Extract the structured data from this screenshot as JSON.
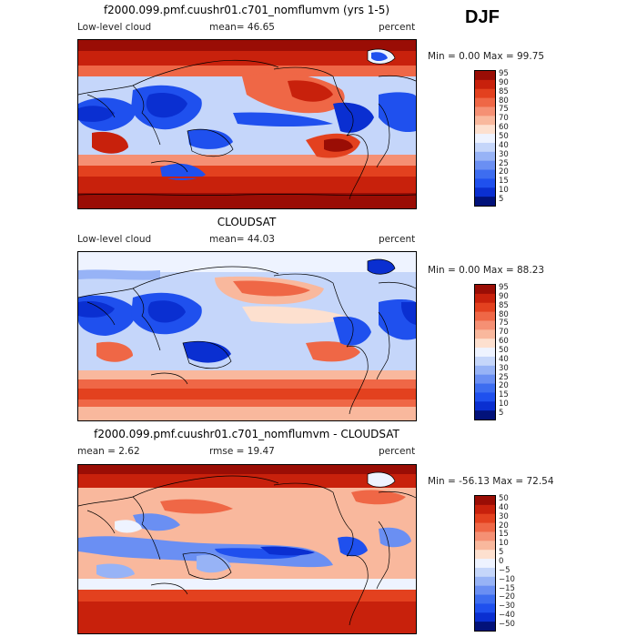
{
  "season": "DJF",
  "colors": {
    "cloud_scale": [
      "#02127a",
      "#0a2fd1",
      "#1f50ee",
      "#3d6df0",
      "#6a8ff3",
      "#97b3f6",
      "#c5d6fa",
      "#eef3ff",
      "#fde0cf",
      "#f9b89d",
      "#f59074",
      "#ef6746",
      "#e3411f",
      "#c8210c",
      "#9a0d05"
    ],
    "diff_scale": [
      "#02127a",
      "#0a2fd1",
      "#1f50ee",
      "#3d6df0",
      "#6a8ff3",
      "#97b3f6",
      "#c5d6fa",
      "#eef3ff",
      "#fde0cf",
      "#f9b89d",
      "#f59074",
      "#ef6746",
      "#e3411f",
      "#c8210c",
      "#9a0d05"
    ]
  },
  "panels": [
    {
      "title": "f2000.099.pmf.cuushr01.c701_nomflumvm (yrs 1-5)",
      "left_label": "Low-level cloud",
      "stat_label": "mean=  46.65",
      "units": "percent",
      "minmax": "Min =    0.00 Max =  99.75",
      "cbar_labels": [
        "95",
        "90",
        "85",
        "80",
        "75",
        "70",
        "60",
        "50",
        "40",
        "30",
        "25",
        "20",
        "15",
        "10",
        "5"
      ]
    },
    {
      "title": "CLOUDSAT",
      "left_label": "Low-level cloud",
      "stat_label": "mean=  44.03",
      "units": "percent",
      "minmax": "Min =    0.00 Max =  88.23",
      "cbar_labels": [
        "95",
        "90",
        "85",
        "80",
        "75",
        "70",
        "60",
        "50",
        "40",
        "30",
        "25",
        "20",
        "15",
        "10",
        "5"
      ]
    },
    {
      "title": "f2000.099.pmf.cuushr01.c701_nomflumvm - CLOUDSAT",
      "left_label": "mean =    2.62",
      "stat_label": "rmse =  19.47",
      "units": "percent",
      "minmax": "Min = -56.13 Max =  72.54",
      "cbar_labels": [
        "50",
        "40",
        "30",
        "20",
        "15",
        "10",
        "5",
        "0",
        "−5",
        "−10",
        "−15",
        "−20",
        "−30",
        "−40",
        "−50"
      ]
    }
  ]
}
